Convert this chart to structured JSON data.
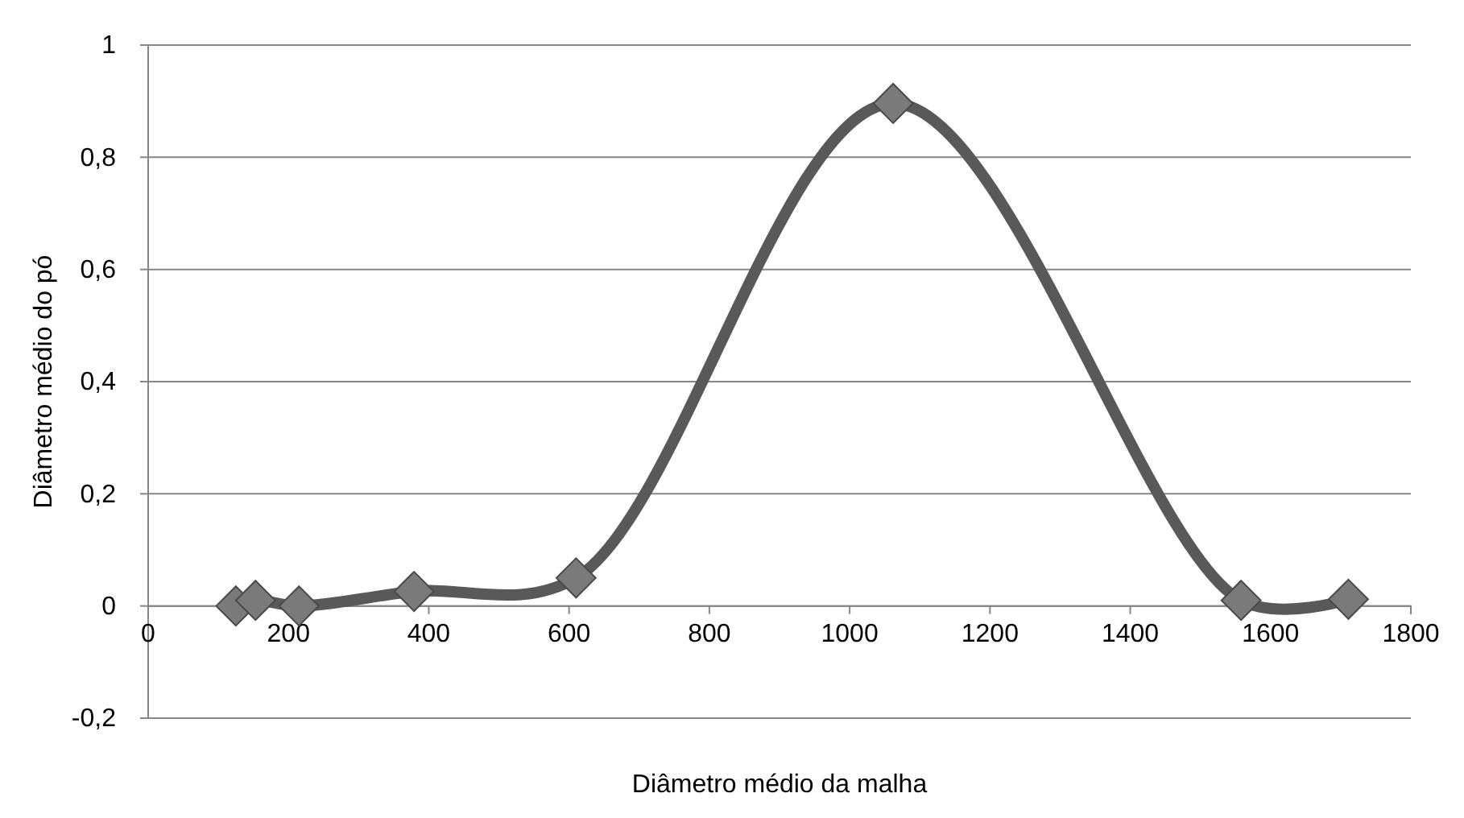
{
  "chart_data": {
    "type": "line",
    "xlabel": "Diâmetro médio da malha",
    "ylabel": "Diâmetro médio do pó",
    "x": [
      125,
      153,
      215,
      379,
      610,
      1062,
      1558,
      1711
    ],
    "series": [
      {
        "color": "#595959",
        "values": [
          0,
          0.01,
          0,
          0.026,
          0.05,
          0.896,
          0.01,
          0.012
        ]
      }
    ],
    "xlim": [
      0,
      1800
    ],
    "xticks": [
      0,
      200,
      400,
      600,
      800,
      1000,
      1200,
      1400,
      1600,
      1800
    ],
    "ylim": [
      -0.2,
      1
    ],
    "yticks": [
      {
        "value": -0.2,
        "label": "-0,2"
      },
      0,
      {
        "value": 0.2,
        "label": "0,2"
      },
      {
        "value": 0.4,
        "label": "0,4"
      },
      {
        "value": 0.6,
        "label": "0,6"
      },
      {
        "value": 0.8,
        "label": "0,8"
      },
      1
    ],
    "grid": "y",
    "marker": "diamond",
    "line_style": "solid"
  }
}
